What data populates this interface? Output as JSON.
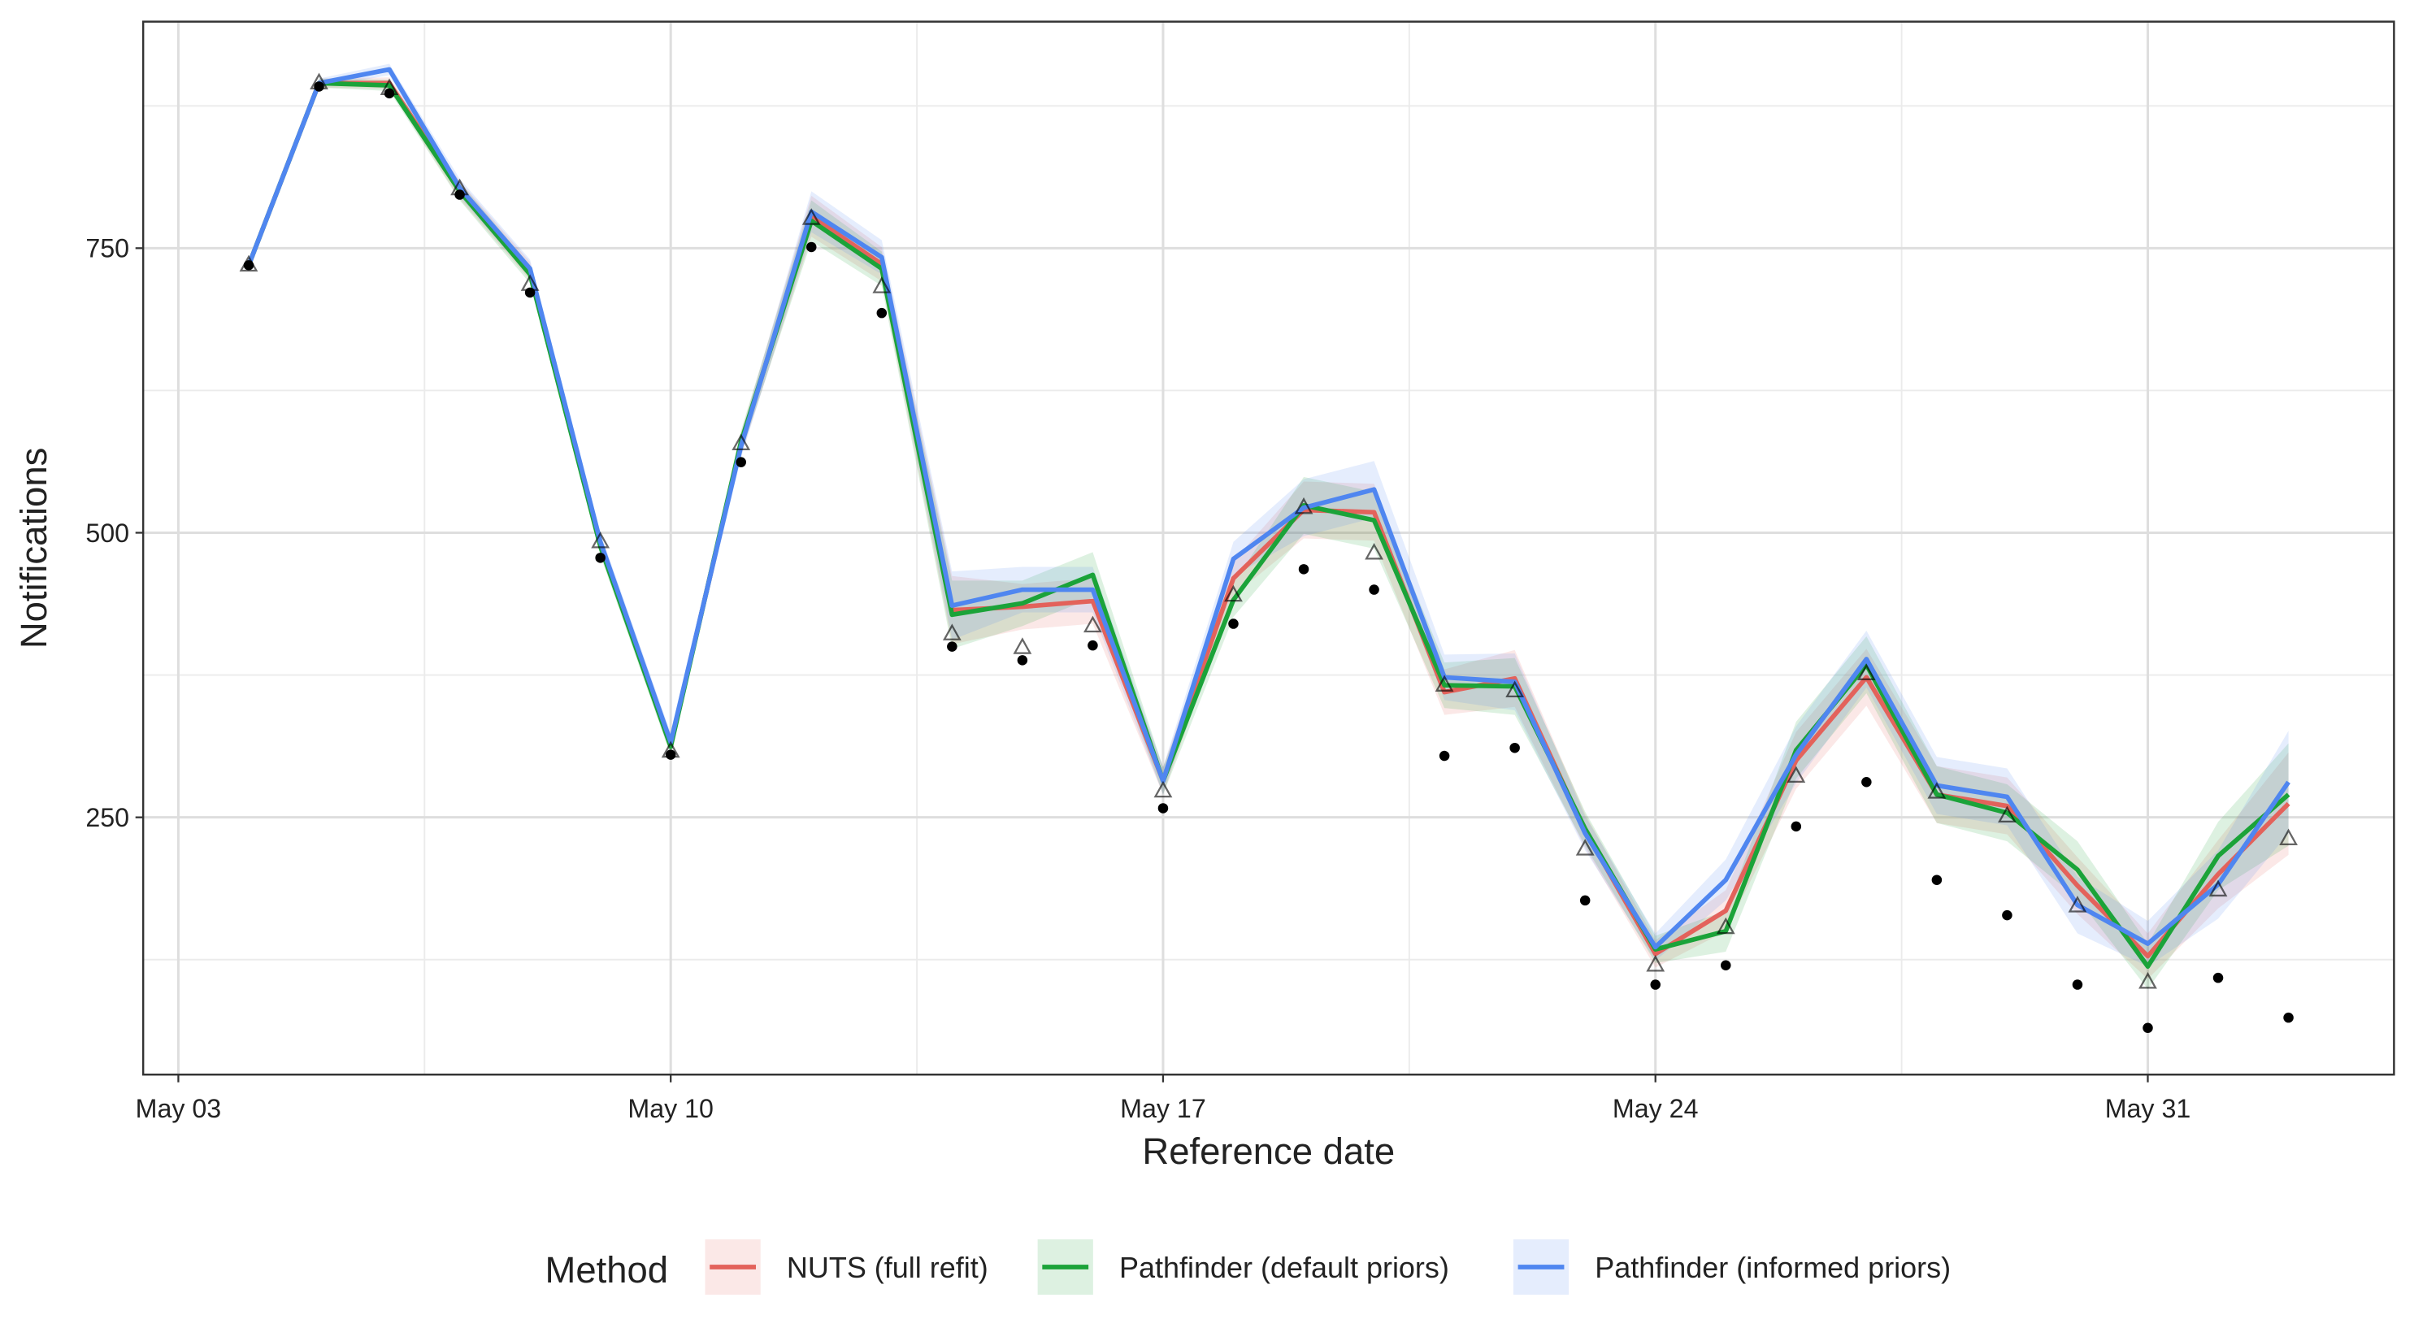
{
  "chart_data": {
    "type": "line",
    "x_label": "Reference date",
    "y_label": "Notifications",
    "legend_title": "Method",
    "legend_position": "bottom",
    "grid": true,
    "x": [
      "05-04",
      "05-05",
      "05-06",
      "05-07",
      "05-08",
      "05-09",
      "05-10",
      "05-11",
      "05-12",
      "05-13",
      "05-14",
      "05-15",
      "05-16",
      "05-17",
      "05-18",
      "05-19",
      "05-20",
      "05-21",
      "05-22",
      "05-23",
      "05-24",
      "05-25",
      "05-26",
      "05-27",
      "05-28",
      "05-29",
      "05-30",
      "05-31",
      "06-01",
      "06-02"
    ],
    "xlim": [
      "05-02.5",
      "06-03.5"
    ],
    "xticks": [
      {
        "value": "05-03",
        "label": "May 03"
      },
      {
        "value": "05-10",
        "label": "May 10"
      },
      {
        "value": "05-17",
        "label": "May 17"
      },
      {
        "value": "05-24",
        "label": "May 24"
      },
      {
        "value": "05-31",
        "label": "May 31"
      }
    ],
    "x_minor_ticks": [
      "05-06.5",
      "05-13.5",
      "05-20.5",
      "05-27.5"
    ],
    "ylim": [
      24,
      949
    ],
    "yticks": [
      250,
      500,
      750
    ],
    "y_minor_ticks": [
      125,
      375,
      625,
      875
    ],
    "series": [
      {
        "name": "NUTS (full refit)",
        "color": "#e3625b",
        "values": [
          735,
          895,
          895,
          801,
          730,
          490,
          314,
          578,
          778,
          736,
          432,
          435,
          440,
          282,
          460,
          520,
          518,
          360,
          372,
          238,
          130,
          168,
          300,
          373,
          270,
          260,
          190,
          128,
          200,
          262
        ],
        "lower": [
          732,
          891,
          890,
          793,
          722,
          482,
          306,
          568,
          760,
          721,
          402,
          415,
          420,
          270,
          445,
          495,
          493,
          340,
          347,
          223,
          118,
          150,
          275,
          348,
          245,
          235,
          165,
          108,
          170,
          217
        ],
        "upper": [
          738,
          899,
          900,
          809,
          738,
          498,
          322,
          588,
          796,
          751,
          462,
          455,
          460,
          294,
          475,
          545,
          543,
          380,
          397,
          253,
          142,
          186,
          325,
          398,
          295,
          285,
          215,
          148,
          230,
          307
        ]
      },
      {
        "name": "Pathfinder (default priors)",
        "color": "#1ba339",
        "values": [
          735,
          895,
          893,
          800,
          727,
          488,
          312,
          580,
          774,
          732,
          428,
          438,
          463,
          282,
          441,
          524,
          511,
          366,
          365,
          240,
          134,
          150,
          309,
          384,
          270,
          254,
          204,
          119,
          216,
          270
        ],
        "lower": [
          732,
          891,
          888,
          792,
          719,
          480,
          304,
          570,
          756,
          717,
          398,
          418,
          443,
          270,
          426,
          499,
          486,
          346,
          340,
          225,
          122,
          132,
          284,
          359,
          245,
          229,
          179,
          99,
          186,
          225
        ],
        "upper": [
          738,
          899,
          898,
          808,
          735,
          496,
          320,
          590,
          792,
          747,
          458,
          458,
          483,
          294,
          456,
          549,
          536,
          386,
          390,
          255,
          146,
          168,
          334,
          409,
          295,
          279,
          229,
          139,
          246,
          315
        ]
      },
      {
        "name": "Pathfinder (informed priors)",
        "color": "#4f86f0",
        "values": [
          735,
          895,
          907,
          803,
          732,
          492,
          316,
          576,
          782,
          742,
          436,
          450,
          450,
          282,
          477,
          522,
          538,
          373,
          369,
          236,
          136,
          195,
          305,
          389,
          278,
          268,
          173,
          139,
          191,
          281
        ],
        "lower": [
          732,
          891,
          902,
          795,
          724,
          484,
          308,
          566,
          764,
          727,
          406,
          430,
          430,
          270,
          462,
          497,
          513,
          353,
          344,
          221,
          124,
          177,
          280,
          364,
          253,
          243,
          148,
          119,
          161,
          236
        ],
        "upper": [
          738,
          899,
          912,
          811,
          740,
          500,
          324,
          586,
          800,
          757,
          466,
          470,
          470,
          294,
          492,
          547,
          563,
          393,
          394,
          251,
          148,
          213,
          330,
          414,
          303,
          293,
          198,
          159,
          221,
          326
        ]
      }
    ],
    "observed": [
      735,
      892,
      886,
      797,
      711,
      478,
      305,
      562,
      751,
      693,
      400,
      388,
      401,
      258,
      420,
      468,
      450,
      304,
      311,
      177,
      103,
      120,
      242,
      281,
      195,
      164,
      103,
      65,
      109,
      74
    ],
    "final": [
      735,
      895,
      890,
      802,
      718,
      492,
      308,
      578,
      776,
      716,
      411,
      399,
      418,
      273,
      445,
      522,
      482,
      366,
      361,
      222,
      120,
      153,
      286,
      376,
      272,
      251,
      172,
      105,
      186,
      231
    ]
  }
}
